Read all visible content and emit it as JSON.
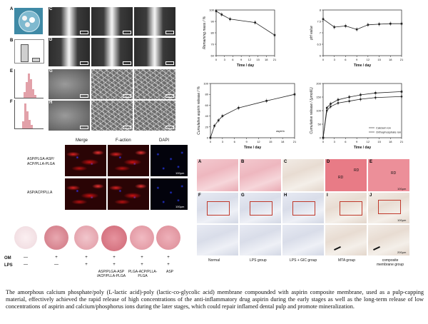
{
  "panels": {
    "a": "A",
    "b": "B",
    "c": "C",
    "d": "D",
    "e": "E",
    "f": "F",
    "g": "G",
    "h": "H"
  },
  "histology_panels": {
    "a": "A",
    "b": "B",
    "c": "C",
    "d": "D",
    "e": "E",
    "f": "F",
    "g": "G",
    "h": "H",
    "i": "I",
    "j": "J",
    "rd1": "RD",
    "rd2": "RD",
    "rd3": "RD",
    "scale_top": "100μm",
    "scale_mid": "100μm",
    "scale_bot": "200μm"
  },
  "groups": [
    "Normal",
    "LPS group",
    "LPS + GIC group",
    "MTA group",
    "composite membrane group"
  ],
  "fluorescence": {
    "headers": [
      "Merge",
      "F-action",
      "DAPI"
    ],
    "row_labels": [
      "ASP/PLGA-ASP/ ACP/PLLA-PLGA",
      "ASP/ACP/PLLA"
    ],
    "scale": "100μm"
  },
  "stain_table": {
    "row_labels": [
      "OM",
      "LPS"
    ],
    "om": [
      "—",
      "+",
      "+",
      "+",
      "+",
      "+"
    ],
    "lps": [
      "—",
      "—",
      "+",
      "+",
      "+",
      "+"
    ],
    "groups": [
      "",
      "",
      "",
      "ASP/PLGA-ASP /ACP/PLLA-PLGA",
      "PLGA-ACP/PLLA-PLGA",
      "ASP"
    ]
  },
  "caption": "The amorphous calcium phosphate/poly (L-lactic acid)-poly (lactic-co-glycolic acid) membrane compounded with aspirin composite membrane, used as a pulp-capping material, effectively achieved the rapid release of high concentrations of the anti-inflammatory drug aspirin during the early stages as well as the long-term release of low concentrations of aspirin and calcium/phosphorus ions during the later stages, which could repair inflamed dental pulp and promote mineralization.",
  "chart_data": [
    {
      "type": "line",
      "title": "",
      "xlabel": "Time / day",
      "ylabel": "Remaining mass / %",
      "xlim": [
        0,
        21
      ],
      "ylim": [
        60,
        100
      ],
      "xticks": [
        0,
        3,
        6,
        9,
        12,
        15,
        18,
        21
      ],
      "yticks": [
        60,
        70,
        80,
        90,
        100
      ],
      "series": [
        {
          "x": [
            0,
            2,
            5,
            14,
            21
          ],
          "y": [
            99,
            96,
            92,
            89,
            78
          ]
        }
      ]
    },
    {
      "type": "line",
      "title": "",
      "xlabel": "Time / day",
      "ylabel": "pH value",
      "xlim": [
        0,
        21
      ],
      "ylim": [
        6.0,
        8.0
      ],
      "xticks": [
        0,
        3,
        6,
        9,
        12,
        15,
        18,
        21
      ],
      "yticks": [
        6.0,
        6.5,
        7.0,
        7.5,
        8.0
      ],
      "series": [
        {
          "x": [
            0,
            3,
            6,
            9,
            12,
            15,
            18,
            21
          ],
          "y": [
            7.6,
            7.25,
            7.3,
            7.15,
            7.35,
            7.38,
            7.4,
            7.4
          ]
        }
      ]
    },
    {
      "type": "line",
      "title": "",
      "xlabel": "Time / day",
      "ylabel": "Cumulative aspirin release / %",
      "xlim": [
        0,
        21
      ],
      "ylim": [
        0,
        100
      ],
      "xticks": [
        0,
        3,
        6,
        9,
        12,
        15,
        18,
        21
      ],
      "yticks": [
        0,
        20,
        40,
        60,
        80,
        100
      ],
      "annotation": "aspirin",
      "series": [
        {
          "x": [
            0,
            1,
            2,
            3,
            7,
            14,
            21
          ],
          "y": [
            0,
            22,
            32,
            40,
            55,
            68,
            80
          ]
        }
      ]
    },
    {
      "type": "line",
      "title": "",
      "xlabel": "Time / day",
      "ylabel": "Cumulative release / (μmol/L)",
      "xlim": [
        0,
        21
      ],
      "ylim": [
        0,
        200
      ],
      "xticks": [
        0,
        3,
        6,
        9,
        12,
        15,
        18,
        21
      ],
      "yticks": [
        0,
        50,
        100,
        150,
        200
      ],
      "legend_position": "bottom-right",
      "series": [
        {
          "name": "Calcium ion",
          "x": [
            0,
            1,
            2,
            4,
            7,
            10,
            14,
            21
          ],
          "y": [
            0,
            110,
            125,
            140,
            150,
            158,
            165,
            170
          ]
        },
        {
          "name": "Orthophosphate ion",
          "x": [
            0,
            1,
            2,
            4,
            7,
            10,
            14,
            21
          ],
          "y": [
            0,
            100,
            115,
            128,
            135,
            142,
            148,
            152
          ]
        }
      ]
    }
  ],
  "colors": {
    "line": "#222222",
    "red_box": "#c0392b"
  }
}
